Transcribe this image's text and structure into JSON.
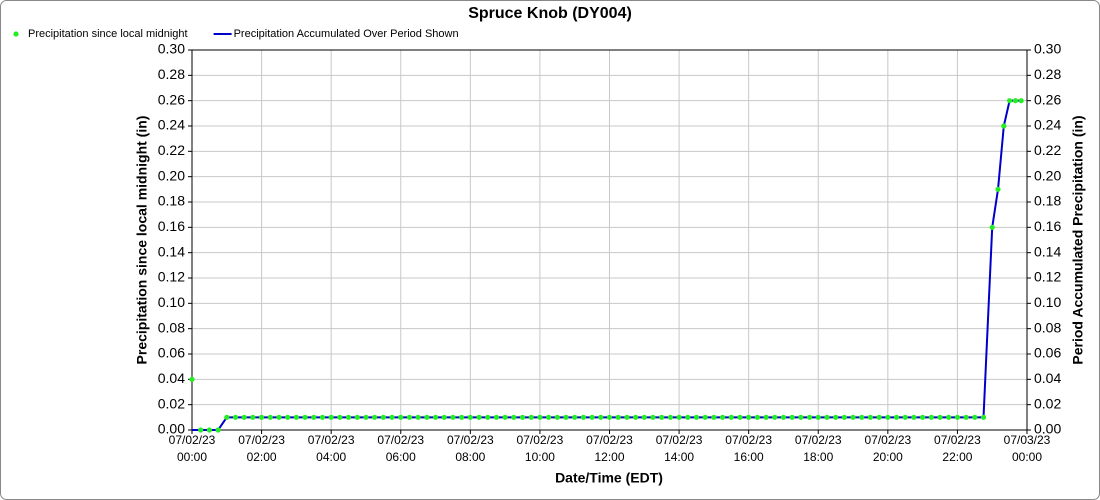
{
  "chart_data": {
    "type": "line",
    "title": "Spruce Knob (DY004)",
    "xlabel": "Date/Time (EDT)",
    "ylabel": "Precipitation since local midnight (in)",
    "y2label": "Period Accumulated Precipitation (in)",
    "legend": "top-left",
    "grid": true,
    "xlim": [
      "07/02/23 00:00",
      "07/03/23 00:00"
    ],
    "xticks": [
      "07/02/23 00:00",
      "07/02/23 02:00",
      "07/02/23 04:00",
      "07/02/23 06:00",
      "07/02/23 08:00",
      "07/02/23 10:00",
      "07/02/23 12:00",
      "07/02/23 14:00",
      "07/02/23 16:00",
      "07/02/23 18:00",
      "07/02/23 20:00",
      "07/02/23 22:00",
      "07/03/23 00:00"
    ],
    "ylim": [
      0,
      0.3
    ],
    "yticks": [
      {
        "value": 0,
        "label": "0.00"
      },
      {
        "value": 0.02,
        "label": "0.02"
      },
      {
        "value": 0.04,
        "label": "0.04"
      },
      {
        "value": 0.06,
        "label": "0.06"
      },
      {
        "value": 0.08,
        "label": "0.08"
      },
      {
        "value": 0.1,
        "label": "0.10"
      },
      {
        "value": 0.12,
        "label": "0.12"
      },
      {
        "value": 0.14,
        "label": "0.14"
      },
      {
        "value": 0.16,
        "label": "0.16"
      },
      {
        "value": 0.18,
        "label": "0.18"
      },
      {
        "value": 0.2,
        "label": "0.20"
      },
      {
        "value": 0.22,
        "label": "0.22"
      },
      {
        "value": 0.24,
        "label": "0.24"
      },
      {
        "value": 0.26,
        "label": "0.26"
      },
      {
        "value": 0.28,
        "label": "0.28"
      },
      {
        "value": 0.3,
        "label": "0.30"
      }
    ],
    "y2lim": [
      0,
      0.3
    ],
    "y2ticks": [
      {
        "value": 0,
        "label": "0.00"
      },
      {
        "value": 0.02,
        "label": "0.02"
      },
      {
        "value": 0.04,
        "label": "0.04"
      },
      {
        "value": 0.06,
        "label": "0.06"
      },
      {
        "value": 0.08,
        "label": "0.08"
      },
      {
        "value": 0.1,
        "label": "0.10"
      },
      {
        "value": 0.12,
        "label": "0.12"
      },
      {
        "value": 0.14,
        "label": "0.14"
      },
      {
        "value": 0.16,
        "label": "0.16"
      },
      {
        "value": 0.18,
        "label": "0.18"
      },
      {
        "value": 0.2,
        "label": "0.20"
      },
      {
        "value": 0.22,
        "label": "0.22"
      },
      {
        "value": 0.24,
        "label": "0.24"
      },
      {
        "value": 0.26,
        "label": "0.26"
      },
      {
        "value": 0.28,
        "label": "0.28"
      },
      {
        "value": 0.3,
        "label": "0.30"
      }
    ],
    "x": [
      "07/02/23 00:00",
      "07/02/23 00:15",
      "07/02/23 00:30",
      "07/02/23 00:45",
      "07/02/23 01:00",
      "07/02/23 01:15",
      "07/02/23 01:30",
      "07/02/23 01:45",
      "07/02/23 02:00",
      "07/02/23 02:15",
      "07/02/23 02:30",
      "07/02/23 02:45",
      "07/02/23 03:00",
      "07/02/23 03:15",
      "07/02/23 03:30",
      "07/02/23 03:45",
      "07/02/23 04:00",
      "07/02/23 04:15",
      "07/02/23 04:30",
      "07/02/23 04:45",
      "07/02/23 05:00",
      "07/02/23 05:15",
      "07/02/23 05:30",
      "07/02/23 05:45",
      "07/02/23 06:00",
      "07/02/23 06:15",
      "07/02/23 06:30",
      "07/02/23 06:45",
      "07/02/23 07:00",
      "07/02/23 07:15",
      "07/02/23 07:30",
      "07/02/23 07:45",
      "07/02/23 08:00",
      "07/02/23 08:15",
      "07/02/23 08:30",
      "07/02/23 08:45",
      "07/02/23 09:00",
      "07/02/23 09:15",
      "07/02/23 09:30",
      "07/02/23 09:45",
      "07/02/23 10:00",
      "07/02/23 10:15",
      "07/02/23 10:30",
      "07/02/23 10:45",
      "07/02/23 11:00",
      "07/02/23 11:15",
      "07/02/23 11:30",
      "07/02/23 11:45",
      "07/02/23 12:00",
      "07/02/23 12:15",
      "07/02/23 12:30",
      "07/02/23 12:45",
      "07/02/23 13:00",
      "07/02/23 13:15",
      "07/02/23 13:30",
      "07/02/23 13:45",
      "07/02/23 14:00",
      "07/02/23 14:15",
      "07/02/23 14:30",
      "07/02/23 14:45",
      "07/02/23 15:00",
      "07/02/23 15:15",
      "07/02/23 15:30",
      "07/02/23 15:45",
      "07/02/23 16:00",
      "07/02/23 16:15",
      "07/02/23 16:30",
      "07/02/23 16:45",
      "07/02/23 17:00",
      "07/02/23 17:15",
      "07/02/23 17:30",
      "07/02/23 17:45",
      "07/02/23 18:00",
      "07/02/23 18:15",
      "07/02/23 18:30",
      "07/02/23 18:45",
      "07/02/23 19:00",
      "07/02/23 19:15",
      "07/02/23 19:30",
      "07/02/23 19:45",
      "07/02/23 20:00",
      "07/02/23 20:15",
      "07/02/23 20:30",
      "07/02/23 20:45",
      "07/02/23 21:00",
      "07/02/23 21:15",
      "07/02/23 21:30",
      "07/02/23 21:45",
      "07/02/23 22:00",
      "07/02/23 22:15",
      "07/02/23 22:30",
      "07/02/23 22:45",
      "07/02/23 23:00",
      "07/02/23 23:10",
      "07/02/23 23:20",
      "07/02/23 23:30",
      "07/02/23 23:40",
      "07/02/23 23:50"
    ],
    "series": [
      {
        "name": "Precipitation since local midnight",
        "color": "#22ee22",
        "style": "markers",
        "axis": "y",
        "values": [
          0.04,
          0,
          0,
          0,
          0.01,
          0.01,
          0.01,
          0.01,
          0.01,
          0.01,
          0.01,
          0.01,
          0.01,
          0.01,
          0.01,
          0.01,
          0.01,
          0.01,
          0.01,
          0.01,
          0.01,
          0.01,
          0.01,
          0.01,
          0.01,
          0.01,
          0.01,
          0.01,
          0.01,
          0.01,
          0.01,
          0.01,
          0.01,
          0.01,
          0.01,
          0.01,
          0.01,
          0.01,
          0.01,
          0.01,
          0.01,
          0.01,
          0.01,
          0.01,
          0.01,
          0.01,
          0.01,
          0.01,
          0.01,
          0.01,
          0.01,
          0.01,
          0.01,
          0.01,
          0.01,
          0.01,
          0.01,
          0.01,
          0.01,
          0.01,
          0.01,
          0.01,
          0.01,
          0.01,
          0.01,
          0.01,
          0.01,
          0.01,
          0.01,
          0.01,
          0.01,
          0.01,
          0.01,
          0.01,
          0.01,
          0.01,
          0.01,
          0.01,
          0.01,
          0.01,
          0.01,
          0.01,
          0.01,
          0.01,
          0.01,
          0.01,
          0.01,
          0.01,
          0.01,
          0.01,
          0.01,
          0.01,
          0.16,
          0.19,
          0.24,
          0.26,
          0.26,
          0.26
        ]
      },
      {
        "name": "Precipitation Accumulated Over Period Shown",
        "color": "#0000cc",
        "style": "line",
        "axis": "y2",
        "values": [
          0,
          0,
          0,
          0,
          0.01,
          0.01,
          0.01,
          0.01,
          0.01,
          0.01,
          0.01,
          0.01,
          0.01,
          0.01,
          0.01,
          0.01,
          0.01,
          0.01,
          0.01,
          0.01,
          0.01,
          0.01,
          0.01,
          0.01,
          0.01,
          0.01,
          0.01,
          0.01,
          0.01,
          0.01,
          0.01,
          0.01,
          0.01,
          0.01,
          0.01,
          0.01,
          0.01,
          0.01,
          0.01,
          0.01,
          0.01,
          0.01,
          0.01,
          0.01,
          0.01,
          0.01,
          0.01,
          0.01,
          0.01,
          0.01,
          0.01,
          0.01,
          0.01,
          0.01,
          0.01,
          0.01,
          0.01,
          0.01,
          0.01,
          0.01,
          0.01,
          0.01,
          0.01,
          0.01,
          0.01,
          0.01,
          0.01,
          0.01,
          0.01,
          0.01,
          0.01,
          0.01,
          0.01,
          0.01,
          0.01,
          0.01,
          0.01,
          0.01,
          0.01,
          0.01,
          0.01,
          0.01,
          0.01,
          0.01,
          0.01,
          0.01,
          0.01,
          0.01,
          0.01,
          0.01,
          0.01,
          0.01,
          0.16,
          0.19,
          0.24,
          0.26,
          0.26,
          0.26
        ]
      }
    ]
  }
}
